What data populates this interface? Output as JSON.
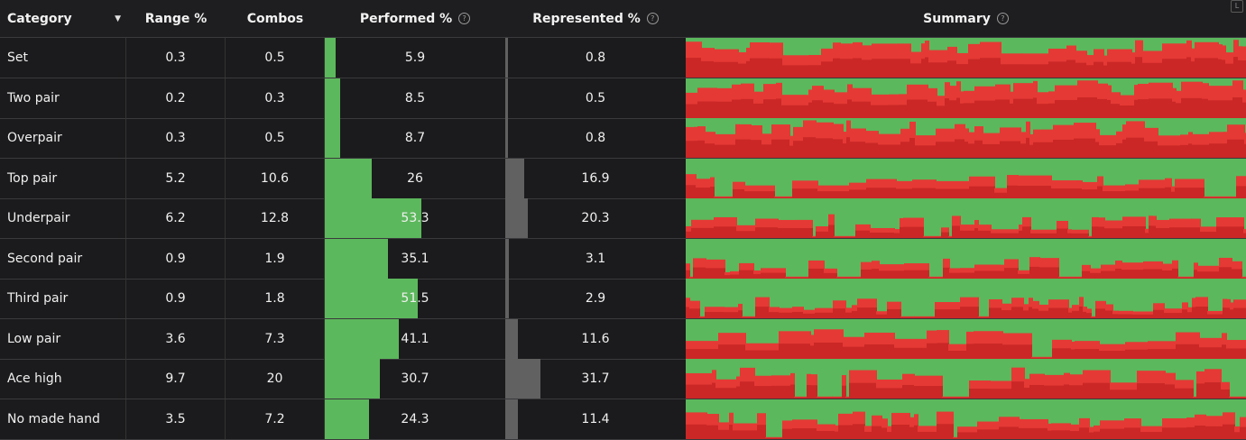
{
  "columns": {
    "category": "Category",
    "range": "Range %",
    "combos": "Combos",
    "performed": "Performed %",
    "represented": "Represented %",
    "summary": "Summary"
  },
  "icons": {
    "help": "help-circle-icon",
    "sort": "caret-down-icon",
    "corner": "corner-tag-icon"
  },
  "corner_label": "L",
  "colors": {
    "performed_bar": "#5cb85c",
    "represented_bar": "#616161",
    "summary_green": "#5cb85c",
    "summary_red": "#e53935"
  },
  "rows": [
    {
      "category": "Set",
      "range": "0.3",
      "combos": "0.5",
      "performed": "5.9",
      "represented": "0.8"
    },
    {
      "category": "Two pair",
      "range": "0.2",
      "combos": "0.3",
      "performed": "8.5",
      "represented": "0.5"
    },
    {
      "category": "Overpair",
      "range": "0.3",
      "combos": "0.5",
      "performed": "8.7",
      "represented": "0.8"
    },
    {
      "category": "Top pair",
      "range": "5.2",
      "combos": "10.6",
      "performed": "26",
      "represented": "16.9"
    },
    {
      "category": "Underpair",
      "range": "6.2",
      "combos": "12.8",
      "performed": "53.3",
      "represented": "20.3"
    },
    {
      "category": "Second pair",
      "range": "0.9",
      "combos": "1.9",
      "performed": "35.1",
      "represented": "3.1"
    },
    {
      "category": "Third pair",
      "range": "0.9",
      "combos": "1.8",
      "performed": "51.5",
      "represented": "2.9"
    },
    {
      "category": "Low pair",
      "range": "3.6",
      "combos": "7.3",
      "performed": "41.1",
      "represented": "11.6"
    },
    {
      "category": "Ace high",
      "range": "9.7",
      "combos": "20",
      "performed": "30.7",
      "represented": "31.7"
    },
    {
      "category": "No made hand",
      "range": "3.5",
      "combos": "7.2",
      "performed": "24.3",
      "represented": "11.4"
    }
  ]
}
